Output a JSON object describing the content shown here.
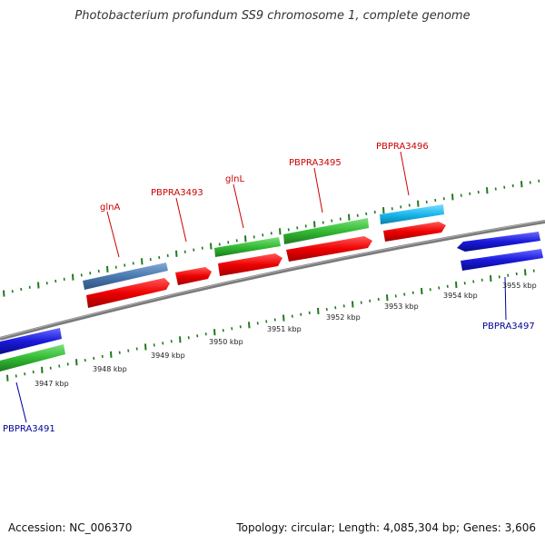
{
  "title": "Photobacterium profundum SS9 chromosome 1, complete genome",
  "footer": {
    "accession": "Accession: NC_006370",
    "summary": "Topology: circular; Length: 4,085,304 bp; Genes: 3,606"
  },
  "kbp_labels": [
    "3947 kbp",
    "3948 kbp",
    "3949 kbp",
    "3950 kbp",
    "3951 kbp",
    "3952 kbp",
    "3953 kbp",
    "3954 kbp",
    "3955 kbp"
  ],
  "gene_labels": {
    "glnA": "glnA",
    "PBPRA3493": "PBPRA3493",
    "glnL": "glnL",
    "PBPRA3495": "PBPRA3495",
    "PBPRA3496": "PBPRA3496",
    "PBPRA3497": "PBPRA3497",
    "PBPRA3491": "PBPRA3491"
  },
  "colors": {
    "backbone": "#808080",
    "tick": "#1f7a1f",
    "cds": "#ee0000",
    "gene_green": "#33bb33",
    "gene_steelblue": "#4a7ab0",
    "gene_cyan": "#19b8ee",
    "gene_blue": "#1a1adb",
    "label_red": "#cc0000",
    "label_blue": "#000099"
  }
}
